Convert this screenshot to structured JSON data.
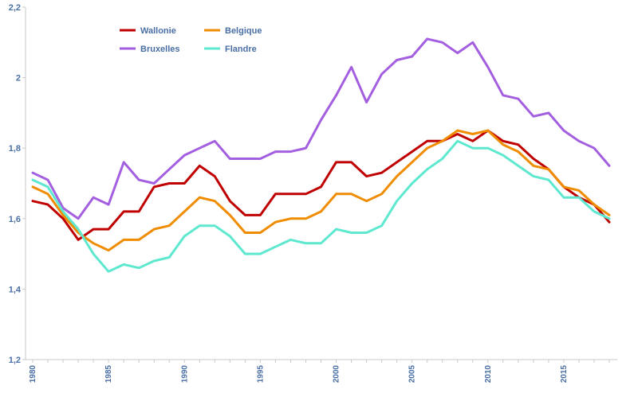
{
  "chart_data": {
    "type": "line",
    "title": "",
    "xlabel": "",
    "ylabel": "",
    "xlim": [
      1980,
      2018
    ],
    "ylim": [
      1.2,
      2.2
    ],
    "y_ticks": [
      "1,2",
      "1,4",
      "1,6",
      "1,8",
      "2",
      "2,2"
    ],
    "x_ticks": [
      "1980",
      "1985",
      "1990",
      "1995",
      "2000",
      "2005",
      "2010",
      "2015"
    ],
    "grid": false,
    "legend_position": "top-left",
    "x": [
      1980,
      1981,
      1982,
      1983,
      1984,
      1985,
      1986,
      1987,
      1988,
      1989,
      1990,
      1991,
      1992,
      1993,
      1994,
      1995,
      1996,
      1997,
      1998,
      1999,
      2000,
      2001,
      2002,
      2003,
      2004,
      2005,
      2006,
      2007,
      2008,
      2009,
      2010,
      2011,
      2012,
      2013,
      2014,
      2015,
      2016,
      2017,
      2018
    ],
    "series": [
      {
        "name": "Wallonie",
        "color": "#c00000",
        "values": [
          1.65,
          1.64,
          1.6,
          1.54,
          1.57,
          1.57,
          1.62,
          1.62,
          1.69,
          1.7,
          1.7,
          1.75,
          1.72,
          1.65,
          1.61,
          1.61,
          1.67,
          1.67,
          1.67,
          1.69,
          1.76,
          1.76,
          1.72,
          1.73,
          1.76,
          1.79,
          1.82,
          1.82,
          1.84,
          1.82,
          1.85,
          1.82,
          1.81,
          1.77,
          1.74,
          1.69,
          1.66,
          1.64,
          1.59
        ]
      },
      {
        "name": "Belgique",
        "color": "#f08c00",
        "values": [
          1.69,
          1.67,
          1.61,
          1.56,
          1.53,
          1.51,
          1.54,
          1.54,
          1.57,
          1.58,
          1.62,
          1.66,
          1.65,
          1.61,
          1.56,
          1.56,
          1.59,
          1.6,
          1.6,
          1.62,
          1.67,
          1.67,
          1.65,
          1.67,
          1.72,
          1.76,
          1.8,
          1.82,
          1.85,
          1.84,
          1.85,
          1.81,
          1.79,
          1.75,
          1.74,
          1.69,
          1.68,
          1.64,
          1.61
        ]
      },
      {
        "name": "Bruxelles",
        "color": "#a35fe0",
        "values": [
          1.73,
          1.71,
          1.63,
          1.6,
          1.66,
          1.64,
          1.76,
          1.71,
          1.7,
          1.74,
          1.78,
          1.8,
          1.82,
          1.77,
          1.77,
          1.77,
          1.79,
          1.79,
          1.8,
          1.88,
          1.95,
          2.03,
          1.93,
          2.01,
          2.05,
          2.06,
          2.11,
          2.1,
          2.07,
          2.1,
          2.03,
          1.95,
          1.94,
          1.89,
          1.9,
          1.85,
          1.82,
          1.8,
          1.75
        ]
      },
      {
        "name": "Flandre",
        "color": "#5de8cf",
        "values": [
          1.71,
          1.69,
          1.62,
          1.57,
          1.5,
          1.45,
          1.47,
          1.46,
          1.48,
          1.49,
          1.55,
          1.58,
          1.58,
          1.55,
          1.5,
          1.5,
          1.52,
          1.54,
          1.53,
          1.53,
          1.57,
          1.56,
          1.56,
          1.58,
          1.65,
          1.7,
          1.74,
          1.77,
          1.82,
          1.8,
          1.8,
          1.78,
          1.75,
          1.72,
          1.71,
          1.66,
          1.66,
          1.62,
          1.6
        ]
      }
    ]
  }
}
